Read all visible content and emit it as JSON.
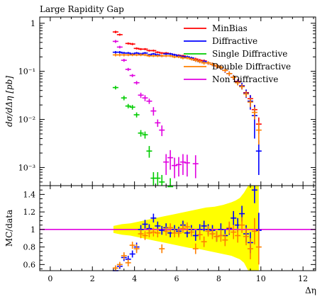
{
  "chart_data": {
    "type": "scatter",
    "title": "Large Rapidity Gap",
    "xlabel": "Δη",
    "ylabel_main": "dσ/dΔη [pb]",
    "ylabel_ratio": "MC/data",
    "xlim": [
      -0.5,
      12.6
    ],
    "main_ylim": [
      0.00042,
      1.35
    ],
    "main_yscale": "log",
    "main_yticks": [
      {
        "value": 1,
        "label": "1"
      },
      {
        "value": 0.1,
        "label": "10⁻¹"
      },
      {
        "value": 0.01,
        "label": "10⁻²"
      },
      {
        "value": 0.001,
        "label": "10⁻³"
      }
    ],
    "ratio_ylim": [
      0.53,
      1.5
    ],
    "ratio_yticks": [
      {
        "value": 0.6,
        "label": "0.6"
      },
      {
        "value": 0.8,
        "label": "0.8"
      },
      {
        "value": 1.0,
        "label": "1"
      },
      {
        "value": 1.2,
        "label": "1.2"
      },
      {
        "value": 1.4,
        "label": "1.4"
      }
    ],
    "xticks": [
      {
        "value": 0,
        "label": "0"
      },
      {
        "value": 2,
        "label": "2"
      },
      {
        "value": 4,
        "label": "4"
      },
      {
        "value": 6,
        "label": "6"
      },
      {
        "value": 8,
        "label": "8"
      },
      {
        "value": 10,
        "label": "10"
      },
      {
        "value": 12,
        "label": "12"
      }
    ],
    "legend_position": "top-right",
    "series": [
      {
        "name": "MinBias",
        "color": "#ff0000",
        "points": [
          [
            3.1,
            0.66,
            0.04
          ],
          [
            3.3,
            0.58,
            0.03
          ],
          [
            3.7,
            0.38,
            0.02
          ],
          [
            3.9,
            0.37,
            0.02
          ],
          [
            4.1,
            0.3,
            0.015
          ],
          [
            4.3,
            0.29,
            0.015
          ],
          [
            4.5,
            0.29,
            0.015
          ],
          [
            4.7,
            0.27,
            0.013
          ],
          [
            4.9,
            0.27,
            0.013
          ],
          [
            5.1,
            0.25,
            0.012
          ],
          [
            5.3,
            0.24,
            0.012
          ],
          [
            5.5,
            0.24,
            0.012
          ],
          [
            5.7,
            0.23,
            0.012
          ],
          [
            5.9,
            0.22,
            0.012
          ],
          [
            6.1,
            0.215,
            0.012
          ],
          [
            6.3,
            0.21,
            0.012
          ],
          [
            6.5,
            0.2,
            0.012
          ],
          [
            6.7,
            0.19,
            0.012
          ],
          [
            6.9,
            0.18,
            0.012
          ],
          [
            7.1,
            0.17,
            0.012
          ],
          [
            7.3,
            0.165,
            0.012
          ],
          [
            7.5,
            0.15,
            0.012
          ],
          [
            7.7,
            0.14,
            0.012
          ],
          [
            7.9,
            0.13,
            0.012
          ],
          [
            8.1,
            0.12,
            0.012
          ],
          [
            8.3,
            0.105,
            0.01
          ],
          [
            8.5,
            0.09,
            0.009
          ],
          [
            8.7,
            0.075,
            0.008
          ],
          [
            8.9,
            0.062,
            0.007
          ],
          [
            9.1,
            0.05,
            0.006
          ],
          [
            9.3,
            0.036,
            0.005
          ],
          [
            9.5,
            0.027,
            0.005
          ],
          [
            9.7,
            0.016,
            0.004
          ],
          [
            9.9,
            0.008,
            0.003
          ]
        ]
      },
      {
        "name": "Diffractive",
        "color": "#0000ff",
        "points": [
          [
            3.1,
            0.25,
            0.015
          ],
          [
            3.3,
            0.25,
            0.015
          ],
          [
            3.5,
            0.24,
            0.015
          ],
          [
            3.7,
            0.24,
            0.013
          ],
          [
            3.9,
            0.23,
            0.013
          ],
          [
            4.1,
            0.24,
            0.013
          ],
          [
            4.3,
            0.23,
            0.013
          ],
          [
            4.5,
            0.24,
            0.013
          ],
          [
            4.7,
            0.22,
            0.012
          ],
          [
            4.9,
            0.23,
            0.012
          ],
          [
            5.1,
            0.22,
            0.012
          ],
          [
            5.3,
            0.21,
            0.012
          ],
          [
            5.5,
            0.23,
            0.012
          ],
          [
            5.7,
            0.23,
            0.012
          ],
          [
            5.9,
            0.22,
            0.012
          ],
          [
            6.1,
            0.21,
            0.012
          ],
          [
            6.3,
            0.2,
            0.012
          ],
          [
            6.5,
            0.2,
            0.012
          ],
          [
            6.7,
            0.19,
            0.012
          ],
          [
            6.9,
            0.17,
            0.012
          ],
          [
            7.1,
            0.16,
            0.012
          ],
          [
            7.3,
            0.16,
            0.012
          ],
          [
            7.5,
            0.15,
            0.012
          ],
          [
            7.7,
            0.14,
            0.012
          ],
          [
            7.9,
            0.13,
            0.012
          ],
          [
            8.1,
            0.12,
            0.012
          ],
          [
            8.3,
            0.105,
            0.012
          ],
          [
            8.5,
            0.09,
            0.01
          ],
          [
            8.7,
            0.075,
            0.009
          ],
          [
            8.9,
            0.06,
            0.008
          ],
          [
            9.1,
            0.05,
            0.008
          ],
          [
            9.3,
            0.035,
            0.007
          ],
          [
            9.5,
            0.024,
            0.008
          ],
          [
            9.7,
            0.012,
            0.008
          ],
          [
            9.9,
            0.0022,
            0.0015
          ]
        ]
      },
      {
        "name": "Single Diffractive",
        "color": "#00cc00",
        "points": [
          [
            3.1,
            0.046,
            0.004
          ],
          [
            3.5,
            0.028,
            0.003
          ],
          [
            3.7,
            0.019,
            0.002
          ],
          [
            3.9,
            0.018,
            0.002
          ],
          [
            4.1,
            0.0125,
            0.0015
          ],
          [
            4.3,
            0.0052,
            0.0008
          ],
          [
            4.5,
            0.0048,
            0.0008
          ],
          [
            4.7,
            0.0022,
            0.0006
          ],
          [
            4.9,
            0.0006,
            0.0002
          ],
          [
            5.1,
            0.0006,
            0.0002
          ],
          [
            5.3,
            0.0005,
            0.0002
          ],
          [
            5.7,
            0.0004,
            0.0002
          ]
        ]
      },
      {
        "name": "Double Diffractive",
        "color": "#ff8000",
        "points": [
          [
            3.1,
            0.22,
            0.015
          ],
          [
            3.3,
            0.22,
            0.015
          ],
          [
            3.5,
            0.22,
            0.015
          ],
          [
            3.7,
            0.22,
            0.013
          ],
          [
            3.9,
            0.22,
            0.013
          ],
          [
            4.1,
            0.22,
            0.013
          ],
          [
            4.3,
            0.22,
            0.013
          ],
          [
            4.5,
            0.22,
            0.013
          ],
          [
            4.7,
            0.21,
            0.012
          ],
          [
            4.9,
            0.21,
            0.012
          ],
          [
            5.1,
            0.21,
            0.012
          ],
          [
            5.3,
            0.21,
            0.012
          ],
          [
            5.5,
            0.21,
            0.012
          ],
          [
            5.7,
            0.21,
            0.012
          ],
          [
            5.9,
            0.2,
            0.012
          ],
          [
            6.1,
            0.2,
            0.012
          ],
          [
            6.3,
            0.19,
            0.012
          ],
          [
            6.5,
            0.19,
            0.012
          ],
          [
            6.7,
            0.18,
            0.012
          ],
          [
            6.9,
            0.17,
            0.012
          ],
          [
            7.1,
            0.16,
            0.012
          ],
          [
            7.3,
            0.15,
            0.012
          ],
          [
            7.5,
            0.15,
            0.012
          ],
          [
            7.7,
            0.14,
            0.012
          ],
          [
            7.9,
            0.13,
            0.012
          ],
          [
            8.1,
            0.12,
            0.012
          ],
          [
            8.3,
            0.105,
            0.01
          ],
          [
            8.5,
            0.09,
            0.009
          ],
          [
            8.7,
            0.075,
            0.008
          ],
          [
            8.9,
            0.058,
            0.007
          ],
          [
            9.1,
            0.048,
            0.006
          ],
          [
            9.3,
            0.034,
            0.005
          ],
          [
            9.5,
            0.023,
            0.005
          ],
          [
            9.7,
            0.014,
            0.004
          ],
          [
            9.9,
            0.006,
            0.003
          ]
        ]
      },
      {
        "name": "Non Diffractive",
        "color": "#e000e0",
        "points": [
          [
            3.1,
            0.42,
            0.03
          ],
          [
            3.3,
            0.32,
            0.02
          ],
          [
            3.5,
            0.17,
            0.012
          ],
          [
            3.7,
            0.11,
            0.008
          ],
          [
            3.9,
            0.082,
            0.006
          ],
          [
            4.1,
            0.058,
            0.005
          ],
          [
            4.3,
            0.032,
            0.004
          ],
          [
            4.5,
            0.028,
            0.004
          ],
          [
            4.7,
            0.024,
            0.003
          ],
          [
            4.9,
            0.015,
            0.003
          ],
          [
            5.1,
            0.0085,
            0.0015
          ],
          [
            5.3,
            0.006,
            0.0015
          ],
          [
            5.5,
            0.0013,
            0.0006
          ],
          [
            5.7,
            0.0016,
            0.0007
          ],
          [
            5.9,
            0.0011,
            0.0005
          ],
          [
            6.1,
            0.00115,
            0.0005
          ],
          [
            6.3,
            0.0013,
            0.0006
          ],
          [
            6.5,
            0.00125,
            0.0006
          ],
          [
            6.9,
            0.0012,
            0.0006
          ]
        ]
      }
    ],
    "ratio_band": {
      "color": "#ffff00",
      "points": [
        [
          3.0,
          1.04,
          0.96
        ],
        [
          3.4,
          1.06,
          0.94
        ],
        [
          3.8,
          1.07,
          0.93
        ],
        [
          4.2,
          1.09,
          0.91
        ],
        [
          4.6,
          1.11,
          0.89
        ],
        [
          5.0,
          1.13,
          0.87
        ],
        [
          5.4,
          1.15,
          0.85
        ],
        [
          5.8,
          1.17,
          0.83
        ],
        [
          6.2,
          1.19,
          0.81
        ],
        [
          6.6,
          1.21,
          0.79
        ],
        [
          7.0,
          1.23,
          0.78
        ],
        [
          7.4,
          1.25,
          0.76
        ],
        [
          7.8,
          1.26,
          0.74
        ],
        [
          8.2,
          1.28,
          0.72
        ],
        [
          8.6,
          1.31,
          0.7
        ],
        [
          8.8,
          1.33,
          0.68
        ],
        [
          9.0,
          1.36,
          0.66
        ],
        [
          9.2,
          1.42,
          0.62
        ],
        [
          9.4,
          1.5,
          0.53
        ],
        [
          9.8,
          1.5,
          0.53
        ],
        [
          9.9,
          1.5,
          0.53
        ]
      ]
    },
    "ratio_reference": 1.0,
    "ratio_reference_color": "#e000e0",
    "ratio_series": [
      {
        "name": "Diffractive",
        "color": "#0000ff",
        "points": [
          [
            3.1,
            0.53,
            0.03
          ],
          [
            3.3,
            0.58,
            0.03
          ],
          [
            3.5,
            0.68,
            0.04
          ],
          [
            3.7,
            0.66,
            0.04
          ],
          [
            3.9,
            0.72,
            0.04
          ],
          [
            4.1,
            0.8,
            0.05
          ],
          [
            4.3,
            1.0,
            0.05
          ],
          [
            4.5,
            1.06,
            0.05
          ],
          [
            4.7,
            1.01,
            0.05
          ],
          [
            4.9,
            1.13,
            0.05
          ],
          [
            5.1,
            1.04,
            0.05
          ],
          [
            5.3,
            0.99,
            0.05
          ],
          [
            5.5,
            1.02,
            0.05
          ],
          [
            5.7,
            0.96,
            0.05
          ],
          [
            5.9,
            1.0,
            0.05
          ],
          [
            6.1,
            0.98,
            0.05
          ],
          [
            6.3,
            1.05,
            0.05
          ],
          [
            6.5,
            0.96,
            0.05
          ],
          [
            6.7,
            1.0,
            0.05
          ],
          [
            6.9,
            0.93,
            0.06
          ],
          [
            7.1,
            1.0,
            0.06
          ],
          [
            7.3,
            1.04,
            0.06
          ],
          [
            7.5,
            1.0,
            0.06
          ],
          [
            7.7,
            0.99,
            0.06
          ],
          [
            7.9,
            0.92,
            0.06
          ],
          [
            8.1,
            1.0,
            0.07
          ],
          [
            8.3,
            0.93,
            0.07
          ],
          [
            8.5,
            1.01,
            0.07
          ],
          [
            8.7,
            1.13,
            0.08
          ],
          [
            8.9,
            1.05,
            0.08
          ],
          [
            9.1,
            1.18,
            0.09
          ],
          [
            9.3,
            0.95,
            0.1
          ],
          [
            9.5,
            0.85,
            0.12
          ],
          [
            9.7,
            1.45,
            0.15
          ],
          [
            9.9,
            0.99,
            0.2
          ]
        ]
      },
      {
        "name": "Double Diffractive",
        "color": "#ff8000",
        "points": [
          [
            3.1,
            0.56,
            0.03
          ],
          [
            3.3,
            0.6,
            0.03
          ],
          [
            3.5,
            0.7,
            0.04
          ],
          [
            3.7,
            0.62,
            0.04
          ],
          [
            3.9,
            0.82,
            0.04
          ],
          [
            4.1,
            0.78,
            0.05
          ],
          [
            4.3,
            0.95,
            0.05
          ],
          [
            4.5,
            0.93,
            0.05
          ],
          [
            4.7,
            0.96,
            0.05
          ],
          [
            4.9,
            0.97,
            0.05
          ],
          [
            5.1,
            0.96,
            0.05
          ],
          [
            5.3,
            0.78,
            0.05
          ],
          [
            5.5,
            0.98,
            0.05
          ],
          [
            5.7,
            1.02,
            0.05
          ],
          [
            5.9,
            0.96,
            0.05
          ],
          [
            6.1,
            0.96,
            0.05
          ],
          [
            6.3,
            1.01,
            0.05
          ],
          [
            6.5,
            1.03,
            0.05
          ],
          [
            6.7,
            0.97,
            0.05
          ],
          [
            6.9,
            0.78,
            0.06
          ],
          [
            7.1,
            0.94,
            0.06
          ],
          [
            7.3,
            0.86,
            0.06
          ],
          [
            7.5,
            0.98,
            0.06
          ],
          [
            7.7,
            0.95,
            0.06
          ],
          [
            7.9,
            0.92,
            0.06
          ],
          [
            8.1,
            0.93,
            0.07
          ],
          [
            8.3,
            0.88,
            0.07
          ],
          [
            8.5,
            1.02,
            0.07
          ],
          [
            8.7,
            0.97,
            0.08
          ],
          [
            8.9,
            0.93,
            0.08
          ],
          [
            9.1,
            1.05,
            0.09
          ],
          [
            9.3,
            0.92,
            0.1
          ],
          [
            9.5,
            0.78,
            0.12
          ],
          [
            9.7,
            0.98,
            0.15
          ],
          [
            9.9,
            0.8,
            0.2
          ]
        ]
      }
    ]
  }
}
